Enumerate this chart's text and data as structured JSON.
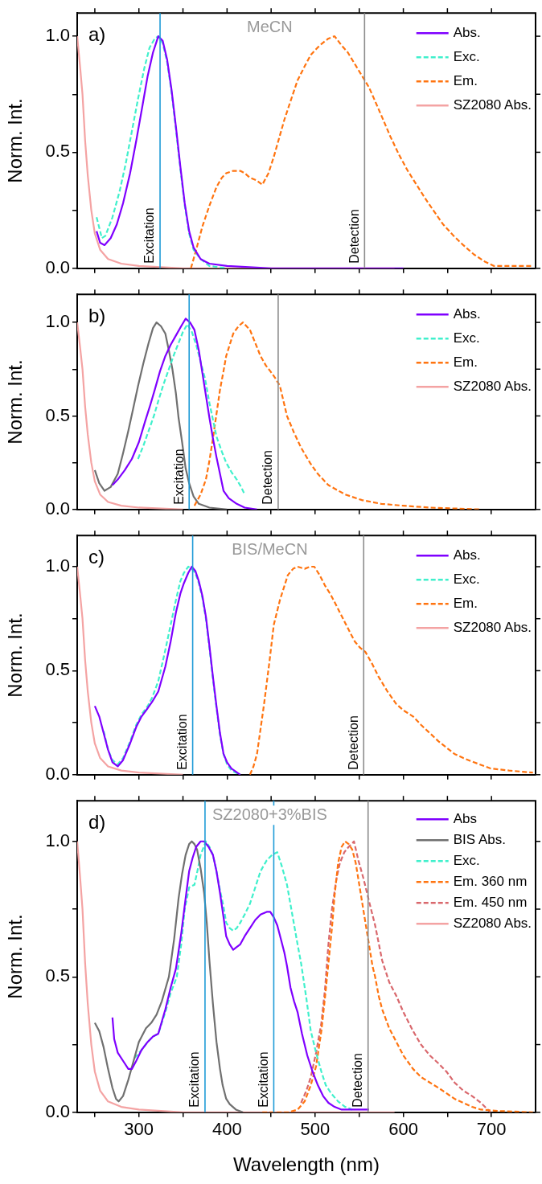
{
  "chart_data": [
    {
      "type": "line",
      "title": "MeCN",
      "ylabel": "Norm. Int.",
      "annotations": [
        "a)"
      ],
      "xlim": [
        230,
        750
      ],
      "ylim": [
        0,
        1.1
      ],
      "tick_labels": "y",
      "legend": "top right",
      "marker": "none",
      "xticks": [
        {
          "value": 250,
          "label": null
        },
        300,
        {
          "value": 350,
          "label": null
        },
        400,
        {
          "value": 450,
          "label": null
        },
        500,
        {
          "value": 550,
          "label": null
        },
        600,
        {
          "value": 650,
          "label": null
        },
        700
      ],
      "yticks": [
        {
          "value": 0,
          "label": "0.0"
        },
        {
          "value": 0.25,
          "label": null
        },
        {
          "value": 0.5,
          "label": "0.5"
        },
        {
          "value": 0.75,
          "label": null
        },
        {
          "value": 1,
          "label": "1.0"
        }
      ],
      "ref_lines": [
        {
          "axis": "x",
          "value": 324,
          "label": "Excitation",
          "color": "#1f9bd7"
        },
        {
          "axis": "x",
          "value": 556,
          "label": "Detection",
          "color": "#8c8c8c"
        }
      ],
      "series": [
        {
          "name": "Abs.",
          "color": "#7f00ff",
          "line_style": "solid",
          "x": [
            252,
            256,
            261,
            268,
            275,
            282,
            290,
            297,
            304,
            310,
            316,
            322,
            327,
            332,
            337,
            342,
            347,
            352,
            357,
            362,
            370,
            380,
            400,
            450,
            500,
            600
          ],
          "values": [
            0.16,
            0.11,
            0.1,
            0.13,
            0.19,
            0.28,
            0.41,
            0.55,
            0.7,
            0.83,
            0.93,
            1.0,
            0.98,
            0.9,
            0.77,
            0.61,
            0.44,
            0.28,
            0.16,
            0.09,
            0.04,
            0.02,
            0.01,
            0.0,
            0.0,
            0.0
          ]
        },
        {
          "name": "Exc.",
          "color": "#40f0cc",
          "line_style": "dashed",
          "x": [
            252,
            258,
            262,
            270,
            278,
            285,
            292,
            299,
            306,
            312,
            318,
            322,
            327,
            332,
            337,
            342,
            347,
            352,
            357,
            362,
            370,
            380,
            400
          ],
          "values": [
            0.22,
            0.13,
            0.14,
            0.22,
            0.33,
            0.45,
            0.59,
            0.73,
            0.86,
            0.95,
            0.99,
            1.0,
            0.97,
            0.89,
            0.76,
            0.6,
            0.43,
            0.27,
            0.15,
            0.08,
            0.04,
            0.01,
            0.0
          ]
        },
        {
          "name": "Em.",
          "color": "#ff7410",
          "line_style": "dashed",
          "x": [
            359,
            365,
            372,
            380,
            388,
            394,
            399,
            407,
            415,
            420,
            426,
            433,
            440,
            447,
            453,
            459,
            465,
            472,
            480,
            488,
            495,
            505,
            515,
            522,
            530,
            537,
            545,
            553,
            561,
            568,
            576,
            585,
            595,
            605,
            615,
            625,
            634,
            645,
            657,
            668,
            680,
            692,
            703,
            720,
            747
          ],
          "values": [
            0.0,
            0.08,
            0.18,
            0.27,
            0.35,
            0.39,
            0.41,
            0.42,
            0.42,
            0.41,
            0.39,
            0.38,
            0.36,
            0.41,
            0.48,
            0.56,
            0.64,
            0.72,
            0.81,
            0.87,
            0.92,
            0.96,
            0.99,
            1.0,
            0.96,
            0.93,
            0.88,
            0.83,
            0.78,
            0.72,
            0.65,
            0.57,
            0.49,
            0.42,
            0.36,
            0.3,
            0.25,
            0.19,
            0.14,
            0.1,
            0.06,
            0.03,
            0.01,
            0.01,
            0.01
          ]
        },
        {
          "name": "SZ2080 Abs.",
          "color": "#f4a3a3",
          "line_style": "solid",
          "x": [
            230,
            233,
            236,
            239,
            242,
            246,
            250,
            256,
            265,
            280,
            300,
            350,
            590
          ],
          "values": [
            1.0,
            0.88,
            0.75,
            0.55,
            0.4,
            0.25,
            0.15,
            0.08,
            0.04,
            0.02,
            0.01,
            0.0,
            0.0
          ]
        }
      ]
    },
    {
      "type": "line",
      "ylabel": "Norm. Int.",
      "annotations": [
        "b)"
      ],
      "xlim": [
        230,
        750
      ],
      "ylim": [
        0,
        1.15
      ],
      "tick_labels": "y",
      "legend": "top right",
      "marker": "none",
      "xticks": [
        {
          "value": 250,
          "label": null
        },
        300,
        {
          "value": 350,
          "label": null
        },
        400,
        {
          "value": 450,
          "label": null
        },
        500,
        {
          "value": 550,
          "label": null
        },
        600,
        {
          "value": 650,
          "label": null
        },
        700
      ],
      "yticks": [
        {
          "value": 0,
          "label": "0.0"
        },
        {
          "value": 0.25,
          "label": null
        },
        {
          "value": 0.5,
          "label": "0.5"
        },
        {
          "value": 0.75,
          "label": null
        },
        {
          "value": 1,
          "label": "1.0"
        }
      ],
      "ref_lines": [
        {
          "axis": "x",
          "value": 357,
          "label": "Excitation",
          "color": "#1f9bd7"
        },
        {
          "axis": "x",
          "value": 458,
          "label": "Detection",
          "color": "#8c8c8c"
        }
      ],
      "series": [
        {
          "name": "Abs.",
          "color": "#7f00ff",
          "line_style": "solid",
          "x": [
            270,
            276,
            284,
            292,
            300,
            307,
            313,
            318,
            324,
            330,
            336,
            342,
            348,
            353,
            358,
            363,
            368,
            372,
            376,
            380,
            384,
            388,
            392,
            396,
            402,
            411,
            420,
            434
          ],
          "values": [
            0.13,
            0.16,
            0.21,
            0.27,
            0.36,
            0.47,
            0.56,
            0.64,
            0.74,
            0.82,
            0.88,
            0.93,
            0.98,
            1.02,
            1.0,
            0.96,
            0.85,
            0.73,
            0.61,
            0.49,
            0.38,
            0.28,
            0.19,
            0.1,
            0.06,
            0.03,
            0.01,
            0.0
          ]
        },
        {
          "name": "Exc.",
          "color": "#40f0cc",
          "line_style": "dashed",
          "x": [
            299,
            305,
            311,
            317,
            322,
            328,
            334,
            340,
            345,
            350,
            355,
            360,
            365,
            370,
            375,
            380,
            384,
            388,
            394,
            399,
            405,
            411,
            416,
            420
          ],
          "values": [
            0.27,
            0.34,
            0.42,
            0.5,
            0.58,
            0.67,
            0.75,
            0.83,
            0.89,
            0.95,
            0.99,
            0.95,
            0.88,
            0.79,
            0.7,
            0.57,
            0.48,
            0.39,
            0.31,
            0.25,
            0.2,
            0.16,
            0.12,
            0.08
          ]
        },
        {
          "name": "Em.",
          "color": "#ff7410",
          "line_style": "dashed",
          "x": [
            363,
            370,
            376,
            380,
            384,
            388,
            392,
            396,
            399,
            403,
            407,
            413,
            418,
            422,
            426,
            432,
            438,
            444,
            449,
            455,
            460,
            468,
            476,
            484,
            494,
            503,
            515,
            534,
            553,
            575,
            600,
            630,
            688
          ],
          "values": [
            0.02,
            0.08,
            0.16,
            0.26,
            0.38,
            0.51,
            0.64,
            0.74,
            0.82,
            0.88,
            0.94,
            0.98,
            1.0,
            0.98,
            0.96,
            0.89,
            0.82,
            0.77,
            0.74,
            0.7,
            0.66,
            0.5,
            0.41,
            0.33,
            0.25,
            0.19,
            0.13,
            0.08,
            0.05,
            0.03,
            0.02,
            0.01,
            0.0
          ]
        },
        {
          "color": "#707070",
          "line_style": "solid",
          "x": [
            250,
            255,
            261,
            268,
            276,
            282,
            288,
            294,
            299,
            305,
            311,
            316,
            320,
            325,
            330,
            334,
            338,
            342,
            345,
            349,
            353,
            357,
            362,
            368,
            380,
            400
          ],
          "values": [
            0.21,
            0.14,
            0.1,
            0.12,
            0.19,
            0.3,
            0.42,
            0.55,
            0.66,
            0.78,
            0.89,
            0.97,
            1.0,
            0.98,
            0.94,
            0.85,
            0.75,
            0.62,
            0.49,
            0.36,
            0.22,
            0.14,
            0.07,
            0.03,
            0.01,
            0.0
          ]
        },
        {
          "name": "SZ2080 Abs.",
          "color": "#f4a3a3",
          "line_style": "solid",
          "x": [
            230,
            233,
            236,
            239,
            242,
            246,
            250,
            256,
            265,
            280,
            300,
            350
          ],
          "values": [
            1.0,
            0.88,
            0.75,
            0.55,
            0.4,
            0.25,
            0.15,
            0.08,
            0.04,
            0.02,
            0.01,
            0.0
          ]
        }
      ]
    },
    {
      "type": "line",
      "title": "BIS/MeCN",
      "ylabel": "Norm. Int.",
      "annotations": [
        "c)"
      ],
      "xlim": [
        230,
        750
      ],
      "ylim": [
        0,
        1.15
      ],
      "tick_labels": "y",
      "legend": "top right",
      "marker": "none",
      "xticks": [
        {
          "value": 250,
          "label": null
        },
        300,
        {
          "value": 350,
          "label": null
        },
        400,
        {
          "value": 450,
          "label": null
        },
        500,
        {
          "value": 550,
          "label": null
        },
        600,
        {
          "value": 650,
          "label": null
        },
        700
      ],
      "yticks": [
        {
          "value": 0,
          "label": "0.0"
        },
        {
          "value": 0.25,
          "label": null
        },
        {
          "value": 0.5,
          "label": "0.5"
        },
        {
          "value": 0.75,
          "label": null
        },
        {
          "value": 1,
          "label": "1.0"
        }
      ],
      "ref_lines": [
        {
          "axis": "x",
          "value": 361,
          "label": "Excitation",
          "color": "#1f9bd7"
        },
        {
          "axis": "x",
          "value": 555,
          "label": "Detection",
          "color": "#8c8c8c"
        }
      ],
      "series": [
        {
          "name": "Abs.",
          "color": "#7f00ff",
          "line_style": "solid",
          "x": [
            250,
            255,
            260,
            265,
            270,
            276,
            282,
            290,
            297,
            303,
            310,
            315,
            322,
            330,
            336,
            342,
            347,
            351,
            356,
            360,
            364,
            368,
            372,
            376,
            380,
            384,
            388,
            392,
            396,
            400,
            405,
            415
          ],
          "values": [
            0.33,
            0.28,
            0.2,
            0.12,
            0.06,
            0.04,
            0.07,
            0.15,
            0.23,
            0.28,
            0.32,
            0.35,
            0.4,
            0.52,
            0.64,
            0.78,
            0.87,
            0.92,
            0.97,
            1.0,
            0.98,
            0.93,
            0.86,
            0.76,
            0.62,
            0.47,
            0.33,
            0.2,
            0.1,
            0.06,
            0.03,
            0.0
          ]
        },
        {
          "name": "Exc.",
          "color": "#40f0cc",
          "line_style": "dashed",
          "x": [
            260,
            265,
            270,
            276,
            282,
            290,
            297,
            303,
            310,
            315,
            322,
            330,
            336,
            342,
            347,
            351,
            356,
            360,
            364,
            368,
            372,
            376,
            380,
            384,
            388,
            392,
            396,
            400,
            405,
            415
          ],
          "values": [
            0.21,
            0.12,
            0.07,
            0.05,
            0.08,
            0.16,
            0.24,
            0.29,
            0.33,
            0.37,
            0.45,
            0.6,
            0.72,
            0.84,
            0.93,
            0.97,
            1.0,
            0.99,
            0.97,
            0.92,
            0.85,
            0.75,
            0.61,
            0.46,
            0.32,
            0.19,
            0.1,
            0.05,
            0.02,
            0.0
          ]
        },
        {
          "name": "Em.",
          "color": "#ff7410",
          "line_style": "dashed",
          "x": [
            426,
            430,
            434,
            438,
            442,
            448,
            453,
            460,
            469,
            475,
            480,
            488,
            494,
            499,
            505,
            511,
            517,
            522,
            528,
            534,
            540,
            545,
            551,
            557,
            565,
            572,
            582,
            592,
            600,
            611,
            620,
            630,
            640,
            649,
            658,
            668,
            680,
            699,
            720,
            747
          ],
          "values": [
            0.0,
            0.04,
            0.1,
            0.22,
            0.34,
            0.54,
            0.72,
            0.84,
            0.96,
            0.99,
            1.0,
            0.99,
            1.0,
            1.0,
            0.96,
            0.91,
            0.87,
            0.83,
            0.78,
            0.73,
            0.68,
            0.64,
            0.61,
            0.59,
            0.53,
            0.47,
            0.4,
            0.34,
            0.31,
            0.28,
            0.24,
            0.2,
            0.16,
            0.13,
            0.1,
            0.08,
            0.06,
            0.03,
            0.02,
            0.01
          ]
        },
        {
          "name": "SZ2080 Abs.",
          "color": "#f4a3a3",
          "line_style": "solid",
          "x": [
            230,
            233,
            236,
            239,
            242,
            246,
            250,
            256,
            265,
            280,
            300,
            350
          ],
          "values": [
            1.0,
            0.88,
            0.75,
            0.55,
            0.4,
            0.25,
            0.15,
            0.08,
            0.04,
            0.02,
            0.01,
            0.0
          ]
        }
      ]
    },
    {
      "type": "line",
      "title": "SZ2080+3%BIS",
      "xlabel": "Wavelength (nm)",
      "ylabel": "Norm. Int.",
      "annotations": [
        "d)"
      ],
      "xlim": [
        230,
        750
      ],
      "ylim": [
        0,
        1.15
      ],
      "legend": "top right",
      "marker": "none",
      "xticks": [
        {
          "value": 250,
          "label": null
        },
        300,
        {
          "value": 350,
          "label": null
        },
        400,
        {
          "value": 450,
          "label": null
        },
        500,
        {
          "value": 550,
          "label": null
        },
        600,
        {
          "value": 650,
          "label": null
        },
        700
      ],
      "yticks": [
        {
          "value": 0,
          "label": "0.0"
        },
        {
          "value": 0.25,
          "label": null
        },
        {
          "value": 0.5,
          "label": "0.5"
        },
        {
          "value": 0.75,
          "label": null
        },
        {
          "value": 1,
          "label": "1.0"
        }
      ],
      "ref_lines": [
        {
          "axis": "x",
          "value": 375,
          "label": "Excitation",
          "color": "#1f9bd7"
        },
        {
          "axis": "x",
          "value": 453,
          "label": "Excitation",
          "color": "#1f9bd7"
        },
        {
          "axis": "x",
          "value": 560,
          "label": "Detection",
          "color": "#8c8c8c"
        }
      ],
      "series": [
        {
          "name": "Abs",
          "color": "#7f00ff",
          "line_style": "solid",
          "x": [
            270,
            272,
            276,
            282,
            288,
            292,
            297,
            303,
            310,
            316,
            322,
            330,
            336,
            342,
            348,
            353,
            357,
            361,
            365,
            370,
            374,
            379,
            384,
            388,
            392,
            396,
            399,
            403,
            407,
            411,
            415,
            420,
            426,
            432,
            438,
            445,
            449,
            453,
            457,
            461,
            465,
            468,
            472,
            476,
            480,
            485,
            491,
            497,
            503,
            509,
            515,
            522,
            530,
            561
          ],
          "values": [
            0.35,
            0.27,
            0.22,
            0.19,
            0.16,
            0.16,
            0.19,
            0.23,
            0.26,
            0.28,
            0.29,
            0.38,
            0.46,
            0.53,
            0.66,
            0.79,
            0.89,
            0.94,
            0.98,
            1.0,
            1.0,
            0.98,
            0.95,
            0.89,
            0.81,
            0.72,
            0.65,
            0.62,
            0.6,
            0.61,
            0.62,
            0.65,
            0.68,
            0.71,
            0.73,
            0.74,
            0.74,
            0.72,
            0.69,
            0.64,
            0.59,
            0.54,
            0.46,
            0.41,
            0.37,
            0.29,
            0.21,
            0.15,
            0.1,
            0.06,
            0.035,
            0.02,
            0.01,
            0.01
          ]
        },
        {
          "name": "BIS Abs.",
          "color": "#707070",
          "line_style": "solid",
          "x": [
            250,
            255,
            260,
            265,
            270,
            274,
            277,
            282,
            288,
            294,
            300,
            308,
            314,
            320,
            326,
            334,
            340,
            345,
            349,
            353,
            357,
            360,
            363,
            366,
            370,
            374,
            377,
            380,
            384,
            388,
            392,
            395,
            399,
            403,
            410,
            418
          ],
          "values": [
            0.33,
            0.3,
            0.24,
            0.16,
            0.09,
            0.05,
            0.04,
            0.06,
            0.12,
            0.19,
            0.26,
            0.31,
            0.33,
            0.36,
            0.41,
            0.5,
            0.64,
            0.79,
            0.88,
            0.95,
            0.99,
            1.0,
            0.99,
            0.97,
            0.9,
            0.81,
            0.7,
            0.56,
            0.4,
            0.26,
            0.16,
            0.1,
            0.05,
            0.03,
            0.01,
            0.0
          ]
        },
        {
          "name": "Exc.",
          "color": "#40f0cc",
          "line_style": "dashed",
          "x": [
            295,
            303,
            310,
            316,
            322,
            330,
            336,
            343,
            348,
            352,
            357,
            363,
            367,
            370,
            376,
            380,
            384,
            388,
            392,
            396,
            399,
            403,
            407,
            411,
            415,
            420,
            426,
            432,
            438,
            445,
            451,
            457,
            462,
            468,
            474,
            480,
            484,
            490,
            495,
            501,
            507,
            512,
            518,
            526,
            534,
            542
          ],
          "values": [
            0.2,
            0.23,
            0.26,
            0.28,
            0.29,
            0.37,
            0.44,
            0.5,
            0.62,
            0.75,
            0.83,
            0.84,
            0.9,
            0.95,
            1.0,
            0.98,
            0.95,
            0.89,
            0.82,
            0.76,
            0.7,
            0.68,
            0.67,
            0.68,
            0.7,
            0.73,
            0.77,
            0.83,
            0.89,
            0.93,
            0.95,
            0.96,
            0.91,
            0.84,
            0.73,
            0.62,
            0.55,
            0.42,
            0.3,
            0.22,
            0.15,
            0.1,
            0.07,
            0.04,
            0.02,
            0.01
          ]
        },
        {
          "name": "Em. 360 nm",
          "color": "#ff7410",
          "line_style": "dashed",
          "x": [
            440,
            470,
            480,
            488,
            495,
            501,
            507,
            511,
            515,
            519,
            522,
            526,
            530,
            534,
            538,
            542,
            546,
            549,
            553,
            557,
            561,
            565,
            568,
            572,
            576,
            584,
            592,
            600,
            611,
            620,
            630,
            640,
            649,
            658,
            668,
            678,
            688,
            707,
            747
          ],
          "values": [
            0.0,
            0.0,
            0.01,
            0.04,
            0.1,
            0.17,
            0.3,
            0.42,
            0.55,
            0.68,
            0.8,
            0.92,
            0.98,
            1.0,
            0.99,
            0.97,
            0.92,
            0.86,
            0.78,
            0.7,
            0.62,
            0.54,
            0.5,
            0.43,
            0.38,
            0.31,
            0.26,
            0.21,
            0.16,
            0.13,
            0.11,
            0.09,
            0.07,
            0.05,
            0.035,
            0.02,
            0.01,
            0.005,
            0.0
          ]
        },
        {
          "name": "Em. 450 nm",
          "color": "#d9686d",
          "line_style": "dashed",
          "x": [
            484,
            490,
            495,
            501,
            507,
            511,
            515,
            519,
            524,
            528,
            533,
            538,
            544,
            549,
            555,
            561,
            568,
            576,
            584,
            592,
            600,
            611,
            620,
            630,
            640,
            649,
            658,
            668,
            678,
            688,
            699
          ],
          "values": [
            0.035,
            0.08,
            0.13,
            0.22,
            0.33,
            0.45,
            0.62,
            0.75,
            0.86,
            0.92,
            0.96,
            0.98,
            1.0,
            0.93,
            0.86,
            0.78,
            0.69,
            0.56,
            0.48,
            0.43,
            0.37,
            0.3,
            0.25,
            0.21,
            0.18,
            0.15,
            0.11,
            0.08,
            0.06,
            0.035,
            0.0
          ]
        },
        {
          "name": "SZ2080 Abs.",
          "color": "#f4a3a3",
          "line_style": "solid",
          "x": [
            230,
            233,
            236,
            239,
            242,
            246,
            250,
            256,
            265,
            280,
            300,
            350,
            590
          ],
          "values": [
            1.0,
            0.88,
            0.75,
            0.55,
            0.4,
            0.25,
            0.15,
            0.08,
            0.04,
            0.02,
            0.01,
            0.0,
            0.0
          ]
        }
      ]
    }
  ]
}
